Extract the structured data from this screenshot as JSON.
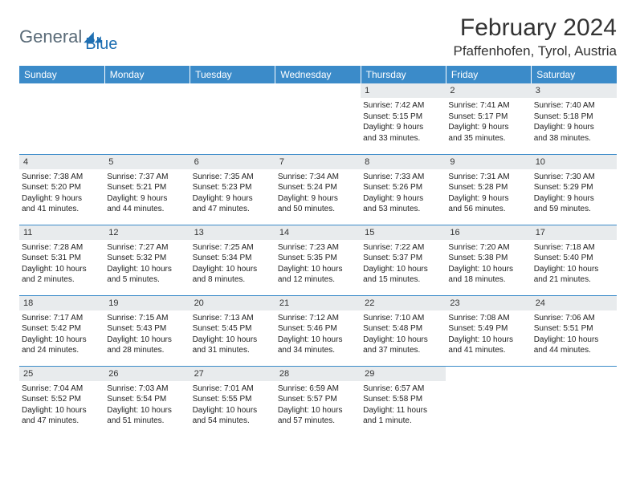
{
  "logo": {
    "word1": "General",
    "word2": "Blue"
  },
  "title": "February 2024",
  "location": "Pfaffenhofen, Tyrol, Austria",
  "colors": {
    "header_bg": "#3b8bc9",
    "header_text": "#ffffff",
    "daynum_bg": "#e8ebed",
    "rule": "#3b8bc9",
    "logo_gray": "#5a6b78",
    "logo_blue": "#1f6fb2"
  },
  "day_headers": [
    "Sunday",
    "Monday",
    "Tuesday",
    "Wednesday",
    "Thursday",
    "Friday",
    "Saturday"
  ],
  "weeks": [
    [
      null,
      null,
      null,
      null,
      {
        "n": "1",
        "sr": "Sunrise: 7:42 AM",
        "ss": "Sunset: 5:15 PM",
        "d1": "Daylight: 9 hours",
        "d2": "and 33 minutes."
      },
      {
        "n": "2",
        "sr": "Sunrise: 7:41 AM",
        "ss": "Sunset: 5:17 PM",
        "d1": "Daylight: 9 hours",
        "d2": "and 35 minutes."
      },
      {
        "n": "3",
        "sr": "Sunrise: 7:40 AM",
        "ss": "Sunset: 5:18 PM",
        "d1": "Daylight: 9 hours",
        "d2": "and 38 minutes."
      }
    ],
    [
      {
        "n": "4",
        "sr": "Sunrise: 7:38 AM",
        "ss": "Sunset: 5:20 PM",
        "d1": "Daylight: 9 hours",
        "d2": "and 41 minutes."
      },
      {
        "n": "5",
        "sr": "Sunrise: 7:37 AM",
        "ss": "Sunset: 5:21 PM",
        "d1": "Daylight: 9 hours",
        "d2": "and 44 minutes."
      },
      {
        "n": "6",
        "sr": "Sunrise: 7:35 AM",
        "ss": "Sunset: 5:23 PM",
        "d1": "Daylight: 9 hours",
        "d2": "and 47 minutes."
      },
      {
        "n": "7",
        "sr": "Sunrise: 7:34 AM",
        "ss": "Sunset: 5:24 PM",
        "d1": "Daylight: 9 hours",
        "d2": "and 50 minutes."
      },
      {
        "n": "8",
        "sr": "Sunrise: 7:33 AM",
        "ss": "Sunset: 5:26 PM",
        "d1": "Daylight: 9 hours",
        "d2": "and 53 minutes."
      },
      {
        "n": "9",
        "sr": "Sunrise: 7:31 AM",
        "ss": "Sunset: 5:28 PM",
        "d1": "Daylight: 9 hours",
        "d2": "and 56 minutes."
      },
      {
        "n": "10",
        "sr": "Sunrise: 7:30 AM",
        "ss": "Sunset: 5:29 PM",
        "d1": "Daylight: 9 hours",
        "d2": "and 59 minutes."
      }
    ],
    [
      {
        "n": "11",
        "sr": "Sunrise: 7:28 AM",
        "ss": "Sunset: 5:31 PM",
        "d1": "Daylight: 10 hours",
        "d2": "and 2 minutes."
      },
      {
        "n": "12",
        "sr": "Sunrise: 7:27 AM",
        "ss": "Sunset: 5:32 PM",
        "d1": "Daylight: 10 hours",
        "d2": "and 5 minutes."
      },
      {
        "n": "13",
        "sr": "Sunrise: 7:25 AM",
        "ss": "Sunset: 5:34 PM",
        "d1": "Daylight: 10 hours",
        "d2": "and 8 minutes."
      },
      {
        "n": "14",
        "sr": "Sunrise: 7:23 AM",
        "ss": "Sunset: 5:35 PM",
        "d1": "Daylight: 10 hours",
        "d2": "and 12 minutes."
      },
      {
        "n": "15",
        "sr": "Sunrise: 7:22 AM",
        "ss": "Sunset: 5:37 PM",
        "d1": "Daylight: 10 hours",
        "d2": "and 15 minutes."
      },
      {
        "n": "16",
        "sr": "Sunrise: 7:20 AM",
        "ss": "Sunset: 5:38 PM",
        "d1": "Daylight: 10 hours",
        "d2": "and 18 minutes."
      },
      {
        "n": "17",
        "sr": "Sunrise: 7:18 AM",
        "ss": "Sunset: 5:40 PM",
        "d1": "Daylight: 10 hours",
        "d2": "and 21 minutes."
      }
    ],
    [
      {
        "n": "18",
        "sr": "Sunrise: 7:17 AM",
        "ss": "Sunset: 5:42 PM",
        "d1": "Daylight: 10 hours",
        "d2": "and 24 minutes."
      },
      {
        "n": "19",
        "sr": "Sunrise: 7:15 AM",
        "ss": "Sunset: 5:43 PM",
        "d1": "Daylight: 10 hours",
        "d2": "and 28 minutes."
      },
      {
        "n": "20",
        "sr": "Sunrise: 7:13 AM",
        "ss": "Sunset: 5:45 PM",
        "d1": "Daylight: 10 hours",
        "d2": "and 31 minutes."
      },
      {
        "n": "21",
        "sr": "Sunrise: 7:12 AM",
        "ss": "Sunset: 5:46 PM",
        "d1": "Daylight: 10 hours",
        "d2": "and 34 minutes."
      },
      {
        "n": "22",
        "sr": "Sunrise: 7:10 AM",
        "ss": "Sunset: 5:48 PM",
        "d1": "Daylight: 10 hours",
        "d2": "and 37 minutes."
      },
      {
        "n": "23",
        "sr": "Sunrise: 7:08 AM",
        "ss": "Sunset: 5:49 PM",
        "d1": "Daylight: 10 hours",
        "d2": "and 41 minutes."
      },
      {
        "n": "24",
        "sr": "Sunrise: 7:06 AM",
        "ss": "Sunset: 5:51 PM",
        "d1": "Daylight: 10 hours",
        "d2": "and 44 minutes."
      }
    ],
    [
      {
        "n": "25",
        "sr": "Sunrise: 7:04 AM",
        "ss": "Sunset: 5:52 PM",
        "d1": "Daylight: 10 hours",
        "d2": "and 47 minutes."
      },
      {
        "n": "26",
        "sr": "Sunrise: 7:03 AM",
        "ss": "Sunset: 5:54 PM",
        "d1": "Daylight: 10 hours",
        "d2": "and 51 minutes."
      },
      {
        "n": "27",
        "sr": "Sunrise: 7:01 AM",
        "ss": "Sunset: 5:55 PM",
        "d1": "Daylight: 10 hours",
        "d2": "and 54 minutes."
      },
      {
        "n": "28",
        "sr": "Sunrise: 6:59 AM",
        "ss": "Sunset: 5:57 PM",
        "d1": "Daylight: 10 hours",
        "d2": "and 57 minutes."
      },
      {
        "n": "29",
        "sr": "Sunrise: 6:57 AM",
        "ss": "Sunset: 5:58 PM",
        "d1": "Daylight: 11 hours",
        "d2": "and 1 minute."
      },
      null,
      null
    ]
  ]
}
